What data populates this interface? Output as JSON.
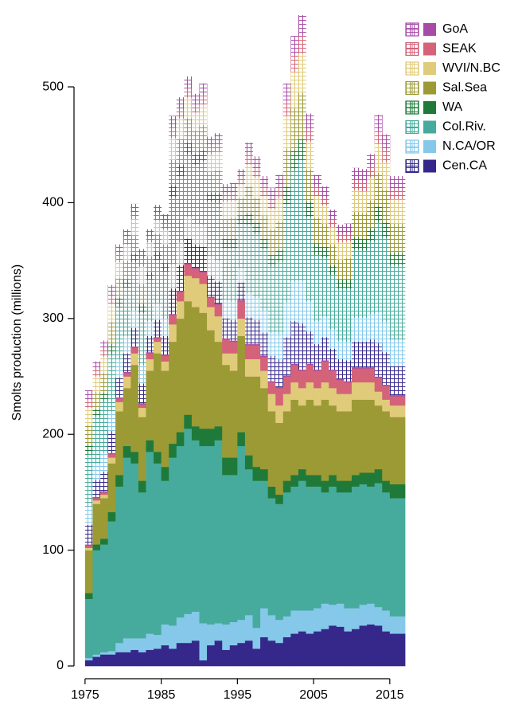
{
  "chart_data": {
    "type": "stacked-step",
    "y_label": "Smolts production (millions)",
    "x": [
      1975,
      1976,
      1977,
      1978,
      1979,
      1980,
      1981,
      1982,
      1983,
      1984,
      1985,
      1986,
      1987,
      1988,
      1989,
      1990,
      1991,
      1992,
      1993,
      1994,
      1995,
      1996,
      1997,
      1998,
      1999,
      2000,
      2001,
      2002,
      2003,
      2004,
      2005,
      2006,
      2007,
      2008,
      2009,
      2010,
      2011,
      2012,
      2013,
      2014,
      2015,
      2016
    ],
    "xlim": [
      1974.7,
      2017
    ],
    "xticks": [
      1975,
      1985,
      1995,
      2005,
      2015
    ],
    "ylim": [
      0,
      575
    ],
    "yticks": [
      0,
      100,
      200,
      300,
      400,
      500
    ],
    "series": [
      {
        "name": "Cen.CA",
        "color": "#35288a",
        "values": [
          5,
          8,
          10,
          10,
          12,
          12,
          14,
          12,
          14,
          15,
          18,
          15,
          20,
          20,
          22,
          5,
          18,
          22,
          14,
          18,
          20,
          22,
          15,
          25,
          22,
          20,
          25,
          28,
          30,
          28,
          30,
          32,
          35,
          34,
          30,
          32,
          35,
          36,
          35,
          30,
          28,
          28
        ],
        "hatched_values": [
          17,
          15,
          17,
          19,
          17,
          16,
          16,
          17,
          14,
          15,
          16,
          22,
          22,
          21,
          20,
          21,
          18,
          19,
          17,
          18,
          15,
          23,
          21,
          20,
          22,
          24,
          33,
          37,
          40,
          28,
          22,
          20,
          18,
          17,
          18,
          22,
          22,
          24,
          29,
          28,
          25,
          25
        ]
      },
      {
        "name": "N.CA/OR",
        "color": "#85c8ea",
        "values": [
          2,
          2,
          2,
          3,
          8,
          12,
          10,
          12,
          14,
          12,
          18,
          20,
          22,
          25,
          25,
          32,
          18,
          15,
          22,
          20,
          20,
          22,
          18,
          25,
          22,
          20,
          18,
          20,
          18,
          20,
          20,
          22,
          18,
          20,
          20,
          18,
          18,
          18,
          16,
          18,
          15,
          15
        ],
        "hatched_values": [
          16,
          14,
          16,
          17,
          16,
          15,
          15,
          16,
          13,
          14,
          15,
          21,
          20,
          19,
          18,
          19,
          17,
          18,
          16,
          16,
          13,
          21,
          19,
          19,
          20,
          22,
          30,
          34,
          37,
          26,
          20,
          18,
          17,
          16,
          16,
          21,
          21,
          22,
          27,
          26,
          23,
          23
        ]
      },
      {
        "name": "Col.Riv.",
        "color": "#46ab9c",
        "values": [
          51,
          90,
          93,
          112,
          135,
          156,
          151,
          126,
          157,
          148,
          124,
          145,
          148,
          160,
          148,
          153,
          154,
          158,
          129,
          127,
          150,
          126,
          127,
          110,
          101,
          100,
          107,
          107,
          112,
          107,
          105,
          96,
          102,
          96,
          100,
          105,
          104,
          101,
          107,
          102,
          102,
          102
        ],
        "hatched_values": [
          45,
          40,
          44,
          49,
          45,
          42,
          42,
          45,
          36,
          38,
          41,
          58,
          57,
          54,
          51,
          55,
          47,
          50,
          45,
          46,
          38,
          59,
          55,
          53,
          57,
          62,
          85,
          96,
          104,
          73,
          57,
          51,
          47,
          45,
          46,
          59,
          58,
          63,
          77,
          73,
          64,
          64
        ]
      },
      {
        "name": "WA",
        "color": "#1f7a3a",
        "values": [
          5,
          5,
          5,
          8,
          10,
          10,
          10,
          10,
          10,
          10,
          12,
          12,
          12,
          12,
          12,
          15,
          15,
          12,
          15,
          15,
          12,
          12,
          12,
          10,
          10,
          8,
          10,
          10,
          10,
          10,
          10,
          10,
          10,
          10,
          10,
          10,
          10,
          12,
          12,
          10,
          12,
          12
        ],
        "hatched_values": [
          8,
          7,
          8,
          9,
          8,
          7,
          7,
          8,
          6,
          7,
          7,
          10,
          10,
          10,
          9,
          10,
          8,
          9,
          8,
          8,
          7,
          10,
          10,
          9,
          10,
          11,
          15,
          17,
          18,
          13,
          10,
          9,
          8,
          8,
          8,
          10,
          10,
          11,
          14,
          13,
          11,
          11
        ]
      },
      {
        "name": "Sal.Sea",
        "color": "#9c9a35",
        "values": [
          37,
          35,
          35,
          42,
          55,
          50,
          75,
          55,
          60,
          85,
          83,
          88,
          98,
          98,
          103,
          100,
          85,
          73,
          80,
          75,
          83,
          68,
          78,
          70,
          65,
          62,
          60,
          65,
          55,
          65,
          60,
          70,
          60,
          60,
          60,
          65,
          63,
          63,
          55,
          60,
          58,
          58
        ],
        "hatched_values": [
          17,
          15,
          17,
          19,
          17,
          16,
          16,
          17,
          14,
          15,
          16,
          22,
          22,
          21,
          20,
          21,
          18,
          19,
          17,
          18,
          15,
          23,
          21,
          20,
          22,
          24,
          33,
          37,
          40,
          28,
          22,
          20,
          18,
          17,
          18,
          22,
          22,
          24,
          29,
          28,
          25,
          25
        ]
      },
      {
        "name": "WVI/N.BC",
        "color": "#e0cb7a",
        "values": [
          2,
          3,
          3,
          5,
          8,
          10,
          10,
          8,
          10,
          10,
          8,
          15,
          15,
          22,
          25,
          25,
          20,
          22,
          10,
          15,
          15,
          15,
          15,
          15,
          15,
          15,
          15,
          15,
          15,
          15,
          15,
          15,
          15,
          15,
          15,
          15,
          15,
          15,
          12,
          10,
          10,
          10
        ],
        "hatched_values": [
          15,
          13,
          14,
          16,
          14,
          14,
          14,
          15,
          12,
          12,
          13,
          19,
          18,
          18,
          16,
          18,
          15,
          16,
          15,
          15,
          12,
          19,
          18,
          17,
          18,
          20,
          28,
          31,
          34,
          24,
          19,
          16,
          15,
          15,
          15,
          19,
          19,
          20,
          25,
          24,
          21,
          21
        ]
      },
      {
        "name": "SEAK",
        "color": "#d4637a",
        "values": [
          2,
          2,
          2,
          3,
          3,
          3,
          5,
          3,
          5,
          3,
          5,
          8,
          8,
          10,
          8,
          10,
          8,
          10,
          12,
          10,
          15,
          12,
          12,
          12,
          10,
          15,
          15,
          15,
          15,
          15,
          15,
          18,
          15,
          12,
          10,
          12,
          12,
          12,
          12,
          12,
          8,
          8
        ],
        "hatched_values": [
          7,
          6,
          6,
          7,
          7,
          6,
          6,
          7,
          5,
          6,
          6,
          9,
          8,
          8,
          7,
          8,
          7,
          7,
          7,
          7,
          6,
          9,
          8,
          8,
          8,
          9,
          13,
          14,
          15,
          11,
          8,
          7,
          7,
          7,
          7,
          9,
          9,
          9,
          11,
          11,
          9,
          9
        ]
      },
      {
        "name": "GoA",
        "color": "#a64ca6",
        "values": [
          1,
          1,
          1,
          1,
          1,
          1,
          1,
          1,
          1,
          1,
          1,
          1,
          1,
          1,
          1,
          1,
          1,
          1,
          1,
          1,
          1,
          1,
          1,
          1,
          1,
          1,
          1,
          1,
          1,
          1,
          1,
          1,
          1,
          1,
          1,
          1,
          1,
          1,
          1,
          1,
          1,
          1
        ],
        "hatched_values": [
          8,
          7,
          8,
          9,
          8,
          7,
          7,
          8,
          6,
          7,
          7,
          10,
          10,
          10,
          9,
          10,
          8,
          9,
          8,
          8,
          7,
          10,
          10,
          9,
          10,
          11,
          15,
          17,
          18,
          13,
          10,
          9,
          8,
          8,
          8,
          10,
          10,
          11,
          14,
          13,
          11,
          11
        ]
      }
    ]
  }
}
